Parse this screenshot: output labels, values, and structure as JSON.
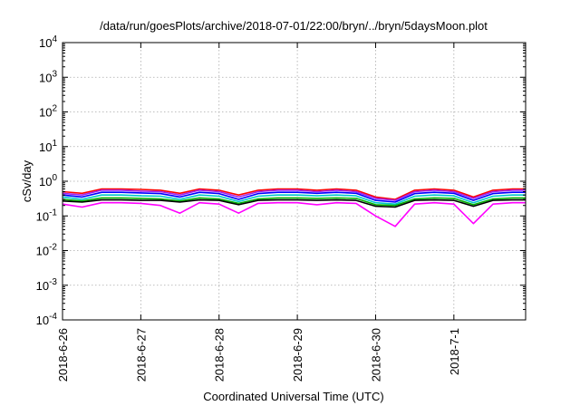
{
  "chart_data": {
    "type": "line",
    "title": "/data/run/goesPlots/archive/2018-07-01/22:00/bryn/../bryn/5daysMoon.plot",
    "xlabel": "Coordinated Universal Time (UTC)",
    "ylabel": "cSv/day",
    "yscale": "log",
    "ylim": [
      0.0001,
      10000
    ],
    "xlim": [
      "2018-06-26",
      "2018-07-01 22:00"
    ],
    "x_ticks": [
      "2018-6-26",
      "2018-6-27",
      "2018-6-28",
      "2018-6-29",
      "2018-6-30",
      "2018-7-1"
    ],
    "y_ticks": [
      {
        "base": "10",
        "exp": "-4"
      },
      {
        "base": "10",
        "exp": "-3"
      },
      {
        "base": "10",
        "exp": "-2"
      },
      {
        "base": "10",
        "exp": "-1"
      },
      {
        "base": "10",
        "exp": "0"
      },
      {
        "base": "10",
        "exp": "1"
      },
      {
        "base": "10",
        "exp": "2"
      },
      {
        "base": "10",
        "exp": "3"
      },
      {
        "base": "10",
        "exp": "4"
      }
    ],
    "grid": true,
    "legend": "none",
    "series": [
      {
        "color": "#ff0000",
        "x": [
          "2018-06-26 00:00",
          "2018-06-26 06:00",
          "2018-06-26 12:00",
          "2018-06-26 18:00",
          "2018-06-27 00:00",
          "2018-06-27 06:00",
          "2018-06-27 12:00",
          "2018-06-27 18:00",
          "2018-06-28 00:00",
          "2018-06-28 06:00",
          "2018-06-28 12:00",
          "2018-06-28 18:00",
          "2018-06-29 00:00",
          "2018-06-29 06:00",
          "2018-06-29 12:00",
          "2018-06-29 18:00",
          "2018-06-30 00:00",
          "2018-06-30 06:00",
          "2018-06-30 12:00",
          "2018-06-30 18:00",
          "2018-07-01 00:00",
          "2018-07-01 06:00",
          "2018-07-01 12:00",
          "2018-07-01 18:00",
          "2018-07-01 22:00"
        ],
        "values": [
          0.5,
          0.45,
          0.6,
          0.6,
          0.58,
          0.55,
          0.45,
          0.6,
          0.55,
          0.4,
          0.55,
          0.6,
          0.6,
          0.55,
          0.6,
          0.55,
          0.35,
          0.3,
          0.55,
          0.6,
          0.55,
          0.35,
          0.55,
          0.6,
          0.6
        ]
      },
      {
        "color": "#a020f0",
        "x": [
          "2018-06-26 00:00",
          "2018-06-26 06:00",
          "2018-06-26 12:00",
          "2018-06-26 18:00",
          "2018-06-27 00:00",
          "2018-06-27 06:00",
          "2018-06-27 12:00",
          "2018-06-27 18:00",
          "2018-06-28 00:00",
          "2018-06-28 06:00",
          "2018-06-28 12:00",
          "2018-06-28 18:00",
          "2018-06-29 00:00",
          "2018-06-29 06:00",
          "2018-06-29 12:00",
          "2018-06-29 18:00",
          "2018-06-30 00:00",
          "2018-06-30 06:00",
          "2018-06-30 12:00",
          "2018-06-30 18:00",
          "2018-07-01 00:00",
          "2018-07-01 06:00",
          "2018-07-01 12:00",
          "2018-07-01 18:00",
          "2018-07-01 22:00"
        ],
        "values": [
          0.45,
          0.4,
          0.55,
          0.55,
          0.52,
          0.5,
          0.4,
          0.55,
          0.5,
          0.35,
          0.5,
          0.55,
          0.55,
          0.5,
          0.55,
          0.5,
          0.32,
          0.28,
          0.5,
          0.55,
          0.5,
          0.32,
          0.5,
          0.55,
          0.55
        ]
      },
      {
        "color": "#0000ff",
        "x": [
          "2018-06-26 00:00",
          "2018-06-26 06:00",
          "2018-06-26 12:00",
          "2018-06-26 18:00",
          "2018-06-27 00:00",
          "2018-06-27 06:00",
          "2018-06-27 12:00",
          "2018-06-27 18:00",
          "2018-06-28 00:00",
          "2018-06-28 06:00",
          "2018-06-28 12:00",
          "2018-06-28 18:00",
          "2018-06-29 00:00",
          "2018-06-29 06:00",
          "2018-06-29 12:00",
          "2018-06-29 18:00",
          "2018-06-30 00:00",
          "2018-06-30 06:00",
          "2018-06-30 12:00",
          "2018-06-30 18:00",
          "2018-07-01 00:00",
          "2018-07-01 06:00",
          "2018-07-01 12:00",
          "2018-07-01 18:00",
          "2018-07-01 22:00"
        ],
        "values": [
          0.4,
          0.35,
          0.48,
          0.48,
          0.46,
          0.44,
          0.35,
          0.48,
          0.44,
          0.3,
          0.44,
          0.48,
          0.48,
          0.45,
          0.48,
          0.45,
          0.28,
          0.25,
          0.44,
          0.48,
          0.45,
          0.28,
          0.44,
          0.48,
          0.48
        ]
      },
      {
        "color": "#00c8c8",
        "x": [
          "2018-06-26 00:00",
          "2018-06-26 06:00",
          "2018-06-26 12:00",
          "2018-06-26 18:00",
          "2018-06-27 00:00",
          "2018-06-27 06:00",
          "2018-06-27 12:00",
          "2018-06-27 18:00",
          "2018-06-28 00:00",
          "2018-06-28 06:00",
          "2018-06-28 12:00",
          "2018-06-28 18:00",
          "2018-06-29 00:00",
          "2018-06-29 06:00",
          "2018-06-29 12:00",
          "2018-06-29 18:00",
          "2018-06-30 00:00",
          "2018-06-30 06:00",
          "2018-06-30 12:00",
          "2018-06-30 18:00",
          "2018-07-01 00:00",
          "2018-07-01 06:00",
          "2018-07-01 12:00",
          "2018-07-01 18:00",
          "2018-07-01 22:00"
        ],
        "values": [
          0.35,
          0.3,
          0.4,
          0.4,
          0.38,
          0.37,
          0.3,
          0.4,
          0.37,
          0.26,
          0.37,
          0.4,
          0.4,
          0.38,
          0.4,
          0.38,
          0.24,
          0.22,
          0.37,
          0.4,
          0.38,
          0.24,
          0.37,
          0.4,
          0.4
        ]
      },
      {
        "color": "#00b000",
        "x": [
          "2018-06-26 00:00",
          "2018-06-26 06:00",
          "2018-06-26 12:00",
          "2018-06-26 18:00",
          "2018-06-27 00:00",
          "2018-06-27 06:00",
          "2018-06-27 12:00",
          "2018-06-27 18:00",
          "2018-06-28 00:00",
          "2018-06-28 06:00",
          "2018-06-28 12:00",
          "2018-06-28 18:00",
          "2018-06-29 00:00",
          "2018-06-29 06:00",
          "2018-06-29 12:00",
          "2018-06-29 18:00",
          "2018-06-30 00:00",
          "2018-06-30 06:00",
          "2018-06-30 12:00",
          "2018-06-30 18:00",
          "2018-07-01 00:00",
          "2018-07-01 06:00",
          "2018-07-01 12:00",
          "2018-07-01 18:00",
          "2018-07-01 22:00"
        ],
        "values": [
          0.3,
          0.27,
          0.33,
          0.33,
          0.32,
          0.31,
          0.27,
          0.33,
          0.31,
          0.23,
          0.31,
          0.33,
          0.33,
          0.32,
          0.33,
          0.32,
          0.21,
          0.2,
          0.31,
          0.33,
          0.32,
          0.21,
          0.31,
          0.33,
          0.33
        ]
      },
      {
        "color": "#000000",
        "x": [
          "2018-06-26 00:00",
          "2018-06-26 06:00",
          "2018-06-26 12:00",
          "2018-06-26 18:00",
          "2018-06-27 00:00",
          "2018-06-27 06:00",
          "2018-06-27 12:00",
          "2018-06-27 18:00",
          "2018-06-28 00:00",
          "2018-06-28 06:00",
          "2018-06-28 12:00",
          "2018-06-28 18:00",
          "2018-06-29 00:00",
          "2018-06-29 06:00",
          "2018-06-29 12:00",
          "2018-06-29 18:00",
          "2018-06-30 00:00",
          "2018-06-30 06:00",
          "2018-06-30 12:00",
          "2018-06-30 18:00",
          "2018-07-01 00:00",
          "2018-07-01 06:00",
          "2018-07-01 12:00",
          "2018-07-01 18:00",
          "2018-07-01 22:00"
        ],
        "values": [
          0.27,
          0.25,
          0.29,
          0.29,
          0.28,
          0.28,
          0.25,
          0.29,
          0.28,
          0.21,
          0.28,
          0.29,
          0.29,
          0.28,
          0.29,
          0.28,
          0.19,
          0.18,
          0.28,
          0.29,
          0.28,
          0.19,
          0.28,
          0.29,
          0.29
        ]
      },
      {
        "color": "#ff00ff",
        "x": [
          "2018-06-26 00:00",
          "2018-06-26 06:00",
          "2018-06-26 12:00",
          "2018-06-26 18:00",
          "2018-06-27 00:00",
          "2018-06-27 06:00",
          "2018-06-27 12:00",
          "2018-06-27 18:00",
          "2018-06-28 00:00",
          "2018-06-28 06:00",
          "2018-06-28 12:00",
          "2018-06-28 18:00",
          "2018-06-29 00:00",
          "2018-06-29 06:00",
          "2018-06-29 12:00",
          "2018-06-29 18:00",
          "2018-06-30 00:00",
          "2018-06-30 06:00",
          "2018-06-30 12:00",
          "2018-06-30 18:00",
          "2018-07-01 00:00",
          "2018-07-01 06:00",
          "2018-07-01 12:00",
          "2018-07-01 18:00",
          "2018-07-01 22:00"
        ],
        "values": [
          0.22,
          0.18,
          0.24,
          0.24,
          0.23,
          0.2,
          0.12,
          0.24,
          0.22,
          0.12,
          0.23,
          0.24,
          0.24,
          0.21,
          0.24,
          0.23,
          0.1,
          0.05,
          0.22,
          0.24,
          0.22,
          0.06,
          0.22,
          0.24,
          0.24
        ]
      }
    ]
  }
}
